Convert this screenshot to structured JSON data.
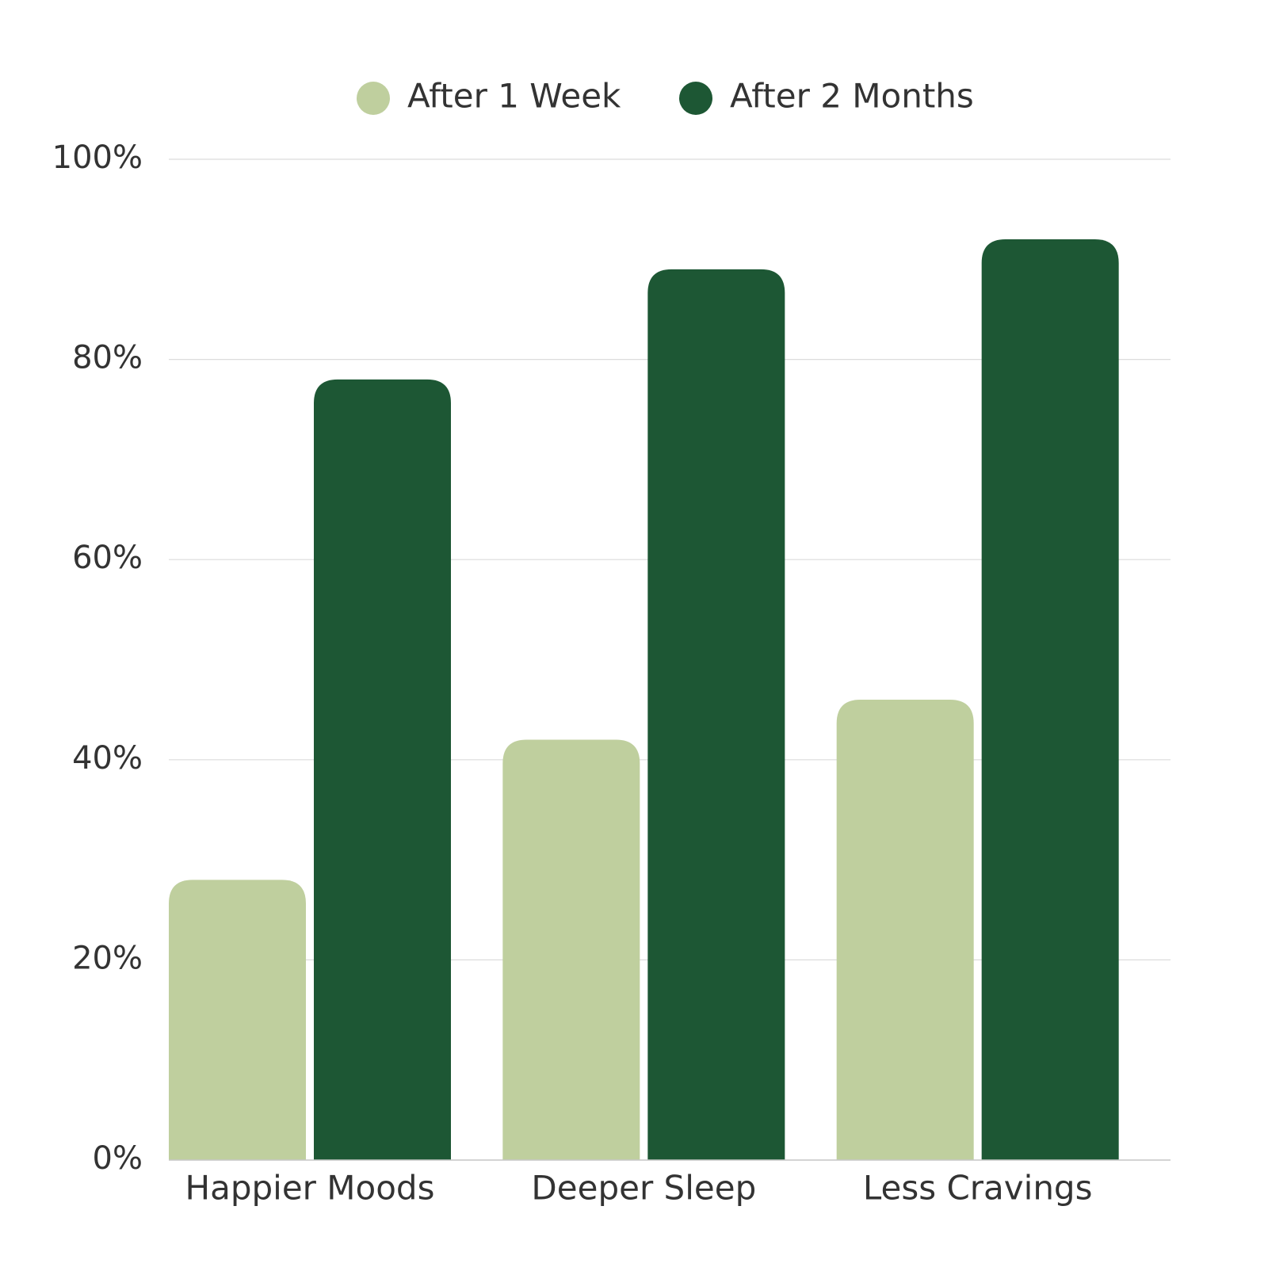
{
  "chart_data": {
    "type": "bar",
    "categories": [
      "Happier Moods",
      "Deeper Sleep",
      "Less Cravings"
    ],
    "series": [
      {
        "name": "After 1 Week",
        "color": "#bfcf9e",
        "values": [
          28,
          42,
          46
        ]
      },
      {
        "name": "After 2 Months",
        "color": "#1d5734",
        "values": [
          78,
          89,
          92
        ]
      }
    ],
    "ylim": [
      0,
      100
    ],
    "yticks": [
      0,
      20,
      40,
      60,
      80,
      100
    ],
    "ytick_labels": [
      "0%",
      "20%",
      "40%",
      "60%",
      "80%",
      "100%"
    ],
    "grid": true,
    "legend_position": "top-center",
    "gridline_color": "#dcdcdc",
    "text_color": "#333333"
  }
}
